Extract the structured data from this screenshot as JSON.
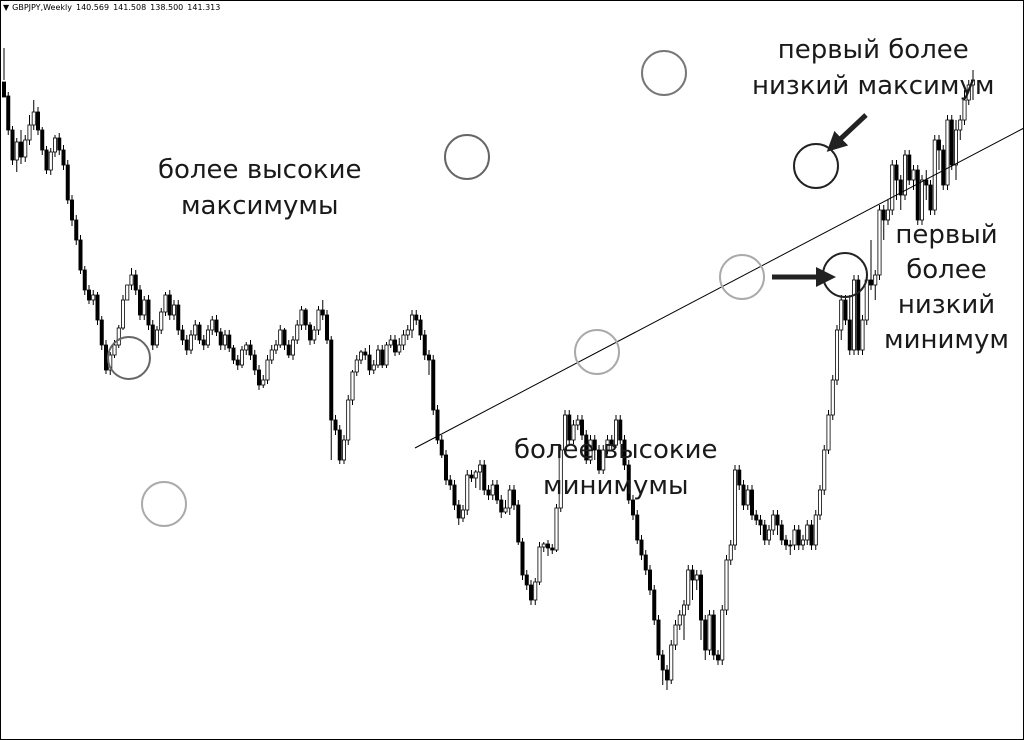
{
  "header": {
    "symbol": "GBPJPY,Weekly",
    "open": "140.569",
    "high": "141.508",
    "low": "138.500",
    "close": "141.313",
    "menu_icon": "triangle-down-icon"
  },
  "annotations": {
    "higher_highs": [
      "более высокие",
      "максимумы"
    ],
    "higher_lows": [
      "более высокие",
      "минимумы"
    ],
    "first_lower_high": [
      "первый более",
      "низкий максимум"
    ],
    "first_lower_low": [
      "первый",
      "более",
      "низкий",
      "минимум"
    ]
  },
  "colors": {
    "candle": "#000000",
    "circle_dark": "#666666",
    "circle_light": "#aaaaaa",
    "arrow": "#222222"
  },
  "chart_data": {
    "type": "candlestick",
    "symbol": "GBPJPY",
    "timeframe": "Weekly",
    "grid": false,
    "legend": "none",
    "ohlc": [
      [
        658,
        643,
        692,
        660
      ],
      [
        644,
        610,
        648,
        605
      ],
      [
        610,
        580,
        614,
        575
      ],
      [
        580,
        598,
        602,
        568
      ],
      [
        598,
        583,
        610,
        576
      ],
      [
        583,
        600,
        605,
        578
      ],
      [
        600,
        615,
        625,
        595
      ],
      [
        615,
        628,
        640,
        610
      ],
      [
        628,
        610,
        633,
        605
      ],
      [
        610,
        590,
        613,
        585
      ],
      [
        590,
        570,
        594,
        566
      ],
      [
        570,
        588,
        592,
        565
      ],
      [
        588,
        602,
        605,
        583
      ],
      [
        602,
        590,
        607,
        585
      ],
      [
        590,
        575,
        595,
        570
      ],
      [
        575,
        540,
        580,
        536
      ],
      [
        540,
        520,
        545,
        514
      ],
      [
        520,
        500,
        525,
        495
      ],
      [
        500,
        470,
        505,
        466
      ],
      [
        470,
        450,
        474,
        445
      ],
      [
        450,
        440,
        455,
        436
      ],
      [
        440,
        445,
        450,
        435
      ],
      [
        445,
        420,
        448,
        415
      ],
      [
        420,
        395,
        424,
        390
      ],
      [
        395,
        370,
        400,
        366
      ],
      [
        370,
        385,
        388,
        365
      ],
      [
        385,
        395,
        400,
        382
      ],
      [
        395,
        412,
        415,
        392
      ],
      [
        412,
        440,
        445,
        410
      ],
      [
        440,
        455,
        450,
        440
      ],
      [
        455,
        465,
        472,
        450
      ],
      [
        465,
        450,
        470,
        445
      ],
      [
        450,
        425,
        455,
        420
      ],
      [
        425,
        440,
        444,
        420
      ],
      [
        440,
        415,
        445,
        410
      ],
      [
        415,
        395,
        420,
        390
      ],
      [
        395,
        410,
        414,
        392
      ],
      [
        410,
        428,
        432,
        406
      ],
      [
        428,
        445,
        448,
        424
      ],
      [
        445,
        425,
        450,
        420
      ],
      [
        425,
        435,
        440,
        420
      ],
      [
        435,
        410,
        440,
        405
      ],
      [
        410,
        400,
        415,
        395
      ],
      [
        400,
        390,
        405,
        385
      ],
      [
        390,
        405,
        410,
        386
      ],
      [
        405,
        415,
        420,
        400
      ],
      [
        415,
        400,
        418,
        396
      ],
      [
        400,
        395,
        405,
        390
      ],
      [
        395,
        410,
        415,
        392
      ],
      [
        410,
        420,
        424,
        405
      ],
      [
        420,
        408,
        425,
        404
      ],
      [
        408,
        395,
        412,
        390
      ],
      [
        395,
        405,
        410,
        390
      ],
      [
        405,
        392,
        410,
        388
      ],
      [
        392,
        380,
        395,
        376
      ],
      [
        380,
        375,
        385,
        370
      ],
      [
        375,
        390,
        394,
        372
      ],
      [
        390,
        395,
        398,
        385
      ],
      [
        395,
        385,
        400,
        380
      ],
      [
        385,
        370,
        390,
        365
      ],
      [
        370,
        355,
        375,
        350
      ],
      [
        355,
        360,
        365,
        352
      ],
      [
        360,
        380,
        385,
        356
      ],
      [
        380,
        390,
        395,
        376
      ],
      [
        390,
        395,
        400,
        386
      ],
      [
        395,
        410,
        415,
        392
      ],
      [
        410,
        395,
        412,
        390
      ],
      [
        395,
        385,
        400,
        382
      ],
      [
        385,
        400,
        404,
        380
      ],
      [
        400,
        415,
        420,
        396
      ],
      [
        415,
        430,
        434,
        410
      ],
      [
        430,
        415,
        432,
        410
      ],
      [
        415,
        400,
        418,
        395
      ],
      [
        400,
        410,
        414,
        396
      ],
      [
        410,
        430,
        434,
        405
      ],
      [
        430,
        425,
        440,
        420
      ],
      [
        425,
        400,
        430,
        396
      ],
      [
        400,
        320,
        404,
        280
      ],
      [
        320,
        310,
        325,
        305
      ],
      [
        310,
        280,
        315,
        276
      ],
      [
        280,
        300,
        305,
        276
      ],
      [
        300,
        340,
        345,
        295
      ],
      [
        340,
        368,
        370,
        335
      ],
      [
        368,
        380,
        385,
        364
      ],
      [
        380,
        388,
        390,
        376
      ],
      [
        388,
        385,
        392,
        380
      ],
      [
        385,
        370,
        395,
        365
      ],
      [
        370,
        375,
        380,
        366
      ],
      [
        375,
        390,
        395,
        372
      ],
      [
        390,
        375,
        395,
        372
      ],
      [
        375,
        395,
        398,
        372
      ],
      [
        395,
        400,
        405,
        392
      ],
      [
        400,
        388,
        405,
        384
      ],
      [
        388,
        395,
        402,
        385
      ],
      [
        395,
        405,
        410,
        390
      ],
      [
        405,
        410,
        415,
        400
      ],
      [
        410,
        425,
        430,
        402
      ],
      [
        425,
        420,
        430,
        415
      ],
      [
        420,
        405,
        425,
        400
      ],
      [
        405,
        385,
        410,
        380
      ],
      [
        385,
        380,
        390,
        365
      ],
      [
        380,
        330,
        385,
        325
      ],
      [
        330,
        300,
        335,
        296
      ],
      [
        300,
        285,
        305,
        282
      ],
      [
        285,
        260,
        290,
        255
      ],
      [
        260,
        255,
        265,
        250
      ],
      [
        255,
        235,
        260,
        230
      ],
      [
        235,
        222,
        240,
        215
      ],
      [
        222,
        230,
        235,
        218
      ],
      [
        230,
        265,
        270,
        225
      ],
      [
        265,
        262,
        270,
        258
      ],
      [
        262,
        268,
        270,
        252
      ],
      [
        268,
        275,
        280,
        250
      ],
      [
        275,
        250,
        280,
        245
      ],
      [
        250,
        245,
        255,
        240
      ],
      [
        245,
        255,
        260,
        240
      ],
      [
        255,
        240,
        260,
        236
      ],
      [
        240,
        228,
        245,
        222
      ],
      [
        228,
        232,
        240,
        226
      ],
      [
        232,
        250,
        255,
        225
      ],
      [
        250,
        235,
        255,
        230
      ],
      [
        235,
        198,
        240,
        195
      ],
      [
        198,
        165,
        202,
        160
      ],
      [
        165,
        155,
        170,
        150
      ],
      [
        155,
        140,
        160,
        135
      ],
      [
        140,
        158,
        162,
        135
      ],
      [
        158,
        193,
        198,
        155
      ],
      [
        193,
        196,
        198,
        188
      ],
      [
        196,
        192,
        200,
        184
      ],
      [
        192,
        190,
        196,
        186
      ],
      [
        190,
        232,
        236,
        188
      ],
      [
        232,
        290,
        295,
        228
      ],
      [
        290,
        325,
        330,
        286
      ],
      [
        325,
        300,
        330,
        296
      ],
      [
        300,
        315,
        320,
        296
      ],
      [
        315,
        320,
        325,
        310
      ],
      [
        320,
        305,
        325,
        300
      ],
      [
        305,
        280,
        310,
        276
      ],
      [
        280,
        300,
        305,
        276
      ],
      [
        300,
        290,
        305,
        280
      ],
      [
        290,
        270,
        295,
        266
      ],
      [
        270,
        290,
        295,
        266
      ],
      [
        290,
        300,
        305,
        286
      ],
      [
        300,
        295,
        305,
        290
      ],
      [
        295,
        320,
        325,
        292
      ],
      [
        320,
        300,
        325,
        296
      ],
      [
        300,
        275,
        305,
        270
      ],
      [
        275,
        240,
        280,
        236
      ],
      [
        240,
        225,
        245,
        220
      ],
      [
        225,
        200,
        230,
        196
      ],
      [
        200,
        185,
        205,
        180
      ],
      [
        185,
        170,
        190,
        165
      ],
      [
        170,
        150,
        175,
        145
      ],
      [
        150,
        120,
        155,
        115
      ],
      [
        120,
        85,
        125,
        80
      ],
      [
        85,
        70,
        90,
        55
      ],
      [
        70,
        60,
        75,
        50
      ],
      [
        60,
        95,
        100,
        56
      ],
      [
        95,
        115,
        120,
        90
      ],
      [
        115,
        125,
        130,
        110
      ],
      [
        125,
        135,
        140,
        100
      ],
      [
        135,
        170,
        175,
        130
      ],
      [
        170,
        160,
        175,
        140
      ],
      [
        160,
        165,
        170,
        150
      ],
      [
        165,
        120,
        170,
        100
      ],
      [
        120,
        90,
        125,
        80
      ],
      [
        90,
        125,
        130,
        85
      ],
      [
        125,
        85,
        130,
        80
      ],
      [
        85,
        80,
        90,
        75
      ],
      [
        80,
        130,
        135,
        75
      ],
      [
        130,
        180,
        185,
        125
      ],
      [
        180,
        195,
        200,
        175
      ],
      [
        195,
        270,
        275,
        190
      ],
      [
        270,
        255,
        275,
        250
      ],
      [
        255,
        235,
        260,
        230
      ],
      [
        235,
        250,
        255,
        230
      ],
      [
        250,
        225,
        255,
        220
      ],
      [
        225,
        220,
        230,
        215
      ],
      [
        220,
        215,
        225,
        205
      ],
      [
        215,
        200,
        220,
        195
      ],
      [
        200,
        210,
        215,
        195
      ],
      [
        210,
        225,
        230,
        205
      ],
      [
        225,
        215,
        230,
        205
      ],
      [
        215,
        200,
        220,
        195
      ],
      [
        200,
        195,
        205,
        190
      ],
      [
        195,
        195,
        200,
        185
      ],
      [
        195,
        210,
        215,
        190
      ],
      [
        210,
        195,
        215,
        190
      ],
      [
        195,
        200,
        205,
        190
      ],
      [
        200,
        215,
        220,
        195
      ],
      [
        215,
        195,
        220,
        190
      ],
      [
        195,
        225,
        230,
        190
      ],
      [
        225,
        250,
        255,
        220
      ],
      [
        250,
        290,
        295,
        245
      ],
      [
        290,
        325,
        330,
        286
      ],
      [
        325,
        360,
        365,
        320
      ],
      [
        360,
        410,
        415,
        355
      ],
      [
        410,
        440,
        445,
        400
      ],
      [
        440,
        420,
        445,
        415
      ],
      [
        420,
        390,
        445,
        385
      ],
      [
        390,
        460,
        465,
        385
      ],
      [
        460,
        390,
        465,
        385
      ],
      [
        390,
        420,
        425,
        385
      ],
      [
        420,
        460,
        465,
        415
      ],
      [
        460,
        455,
        500,
        450
      ],
      [
        455,
        465,
        470,
        440
      ],
      [
        465,
        530,
        535,
        460
      ],
      [
        530,
        520,
        535,
        500
      ],
      [
        520,
        530,
        540,
        515
      ],
      [
        530,
        575,
        580,
        525
      ],
      [
        575,
        560,
        580,
        540
      ],
      [
        560,
        545,
        565,
        530
      ],
      [
        545,
        585,
        590,
        540
      ],
      [
        585,
        560,
        590,
        555
      ],
      [
        560,
        570,
        575,
        550
      ],
      [
        570,
        520,
        575,
        515
      ],
      [
        520,
        560,
        565,
        515
      ],
      [
        560,
        555,
        570,
        540
      ],
      [
        555,
        530,
        560,
        525
      ],
      [
        530,
        600,
        605,
        525
      ],
      [
        600,
        590,
        605,
        570
      ],
      [
        590,
        555,
        595,
        550
      ],
      [
        555,
        620,
        625,
        550
      ],
      [
        620,
        575,
        625,
        570
      ],
      [
        575,
        610,
        620,
        560
      ],
      [
        610,
        620,
        625,
        600
      ],
      [
        620,
        640,
        650,
        615
      ],
      [
        640,
        655,
        660,
        635
      ],
      [
        655,
        660,
        670,
        640
      ]
    ]
  }
}
